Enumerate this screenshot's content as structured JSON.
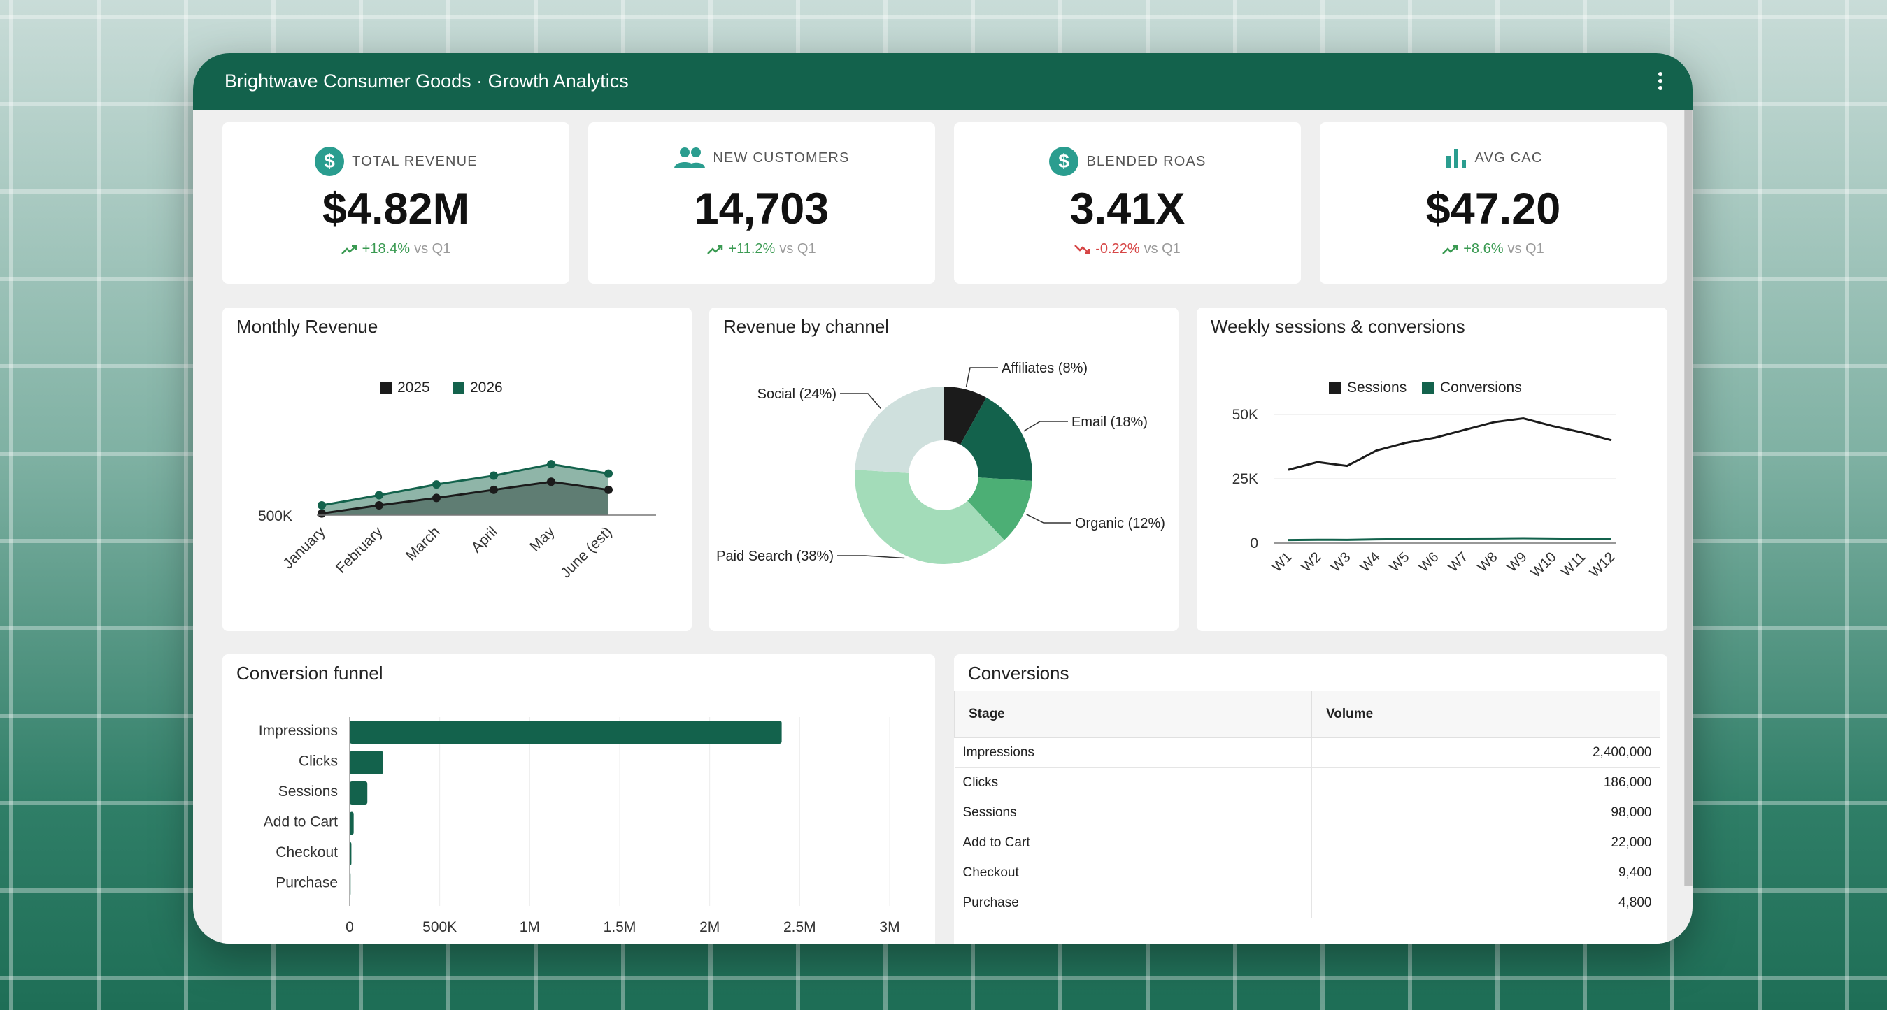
{
  "app": {
    "title": "Brightwave Consumer Goods · Growth Analytics",
    "menu_icon": "more-vert-icon"
  },
  "colors": {
    "header": "#13624c",
    "accent": "#2a9d8f",
    "positive": "#3a9a52",
    "negative": "#d64545"
  },
  "kpis": [
    {
      "icon": "dollar-circle-icon",
      "label": "TOTAL REVENUE",
      "value": "$4.82M",
      "delta": "+18.4%",
      "direction": "up",
      "compare": "vs Q1"
    },
    {
      "icon": "people-icon",
      "label": "NEW CUSTOMERS",
      "value": "14,703",
      "delta": "+11.2%",
      "direction": "up",
      "compare": "vs Q1"
    },
    {
      "icon": "dollar-circle-icon",
      "label": "BLENDED ROAS",
      "value": "3.41X",
      "delta": "-0.22%",
      "direction": "down",
      "compare": "vs Q1"
    },
    {
      "icon": "bar-chart-icon",
      "label": "AVG CAC",
      "value": "$47.20",
      "delta": "+8.6%",
      "direction": "up",
      "compare": "vs Q1"
    }
  ],
  "panels": {
    "monthly_revenue": "Monthly Revenue",
    "channel": "Revenue by channel",
    "weekly": "Weekly sessions & conversions",
    "funnel": "Conversion funnel",
    "conversions": "Conversions"
  },
  "chart_data": [
    {
      "type": "area",
      "title": "Monthly Revenue",
      "categories": [
        "January",
        "February",
        "March",
        "April",
        "May",
        "June (est)"
      ],
      "series": [
        {
          "name": "2025",
          "values": [
            510000,
            630000,
            740000,
            860000,
            980000,
            860000
          ]
        },
        {
          "name": "2026",
          "values": [
            630000,
            780000,
            940000,
            1070000,
            1240000,
            1100000
          ]
        }
      ],
      "y_ticks": [
        "500K"
      ],
      "ylim": [
        0,
        1400000
      ],
      "legend": "top"
    },
    {
      "type": "pie",
      "title": "Revenue by channel",
      "slices": [
        {
          "label": "Affiliates (8%)",
          "value": 8,
          "color": "#1b1b1b"
        },
        {
          "label": "Email (18%)",
          "value": 18,
          "color": "#13624c"
        },
        {
          "label": "Organic (12%)",
          "value": 12,
          "color": "#4caf75"
        },
        {
          "label": "Paid Search (38%)",
          "value": 38,
          "color": "#a3dcb9"
        },
        {
          "label": "Social (24%)",
          "value": 24,
          "color": "#cfe0dd"
        }
      ]
    },
    {
      "type": "line",
      "title": "Weekly sessions & conversions",
      "categories": [
        "W1",
        "W2",
        "W3",
        "W4",
        "W5",
        "W6",
        "W7",
        "W8",
        "W9",
        "W10",
        "W11",
        "W12"
      ],
      "series": [
        {
          "name": "Sessions",
          "color": "#1b1b1b",
          "values": [
            28500,
            31500,
            30000,
            36000,
            39000,
            41000,
            44000,
            47000,
            48500,
            45500,
            43000,
            40000
          ]
        },
        {
          "name": "Conversions",
          "color": "#13624c",
          "values": [
            1200,
            1300,
            1250,
            1450,
            1550,
            1650,
            1750,
            1800,
            1900,
            1800,
            1700,
            1600
          ]
        }
      ],
      "y_ticks": [
        "0",
        "25K",
        "50K"
      ],
      "ylim": [
        0,
        55000
      ],
      "legend": "top"
    },
    {
      "type": "bar",
      "orientation": "horizontal",
      "title": "Conversion funnel",
      "categories": [
        "Impressions",
        "Clicks",
        "Sessions",
        "Add to Cart",
        "Checkout",
        "Purchase"
      ],
      "values": [
        2400000,
        186000,
        98000,
        22000,
        9400,
        4800
      ],
      "x_ticks": [
        "0",
        "500K",
        "1M",
        "1.5M",
        "2M",
        "2.5M",
        "3M"
      ],
      "xlim": [
        0,
        3000000
      ],
      "grid": true
    }
  ],
  "table": {
    "headers": [
      "Stage",
      "Volume"
    ],
    "rows": [
      [
        "Impressions",
        "2,400,000"
      ],
      [
        "Clicks",
        "186,000"
      ],
      [
        "Sessions",
        "98,000"
      ],
      [
        "Add to Cart",
        "22,000"
      ],
      [
        "Checkout",
        "9,400"
      ],
      [
        "Purchase",
        "4,800"
      ]
    ]
  }
}
